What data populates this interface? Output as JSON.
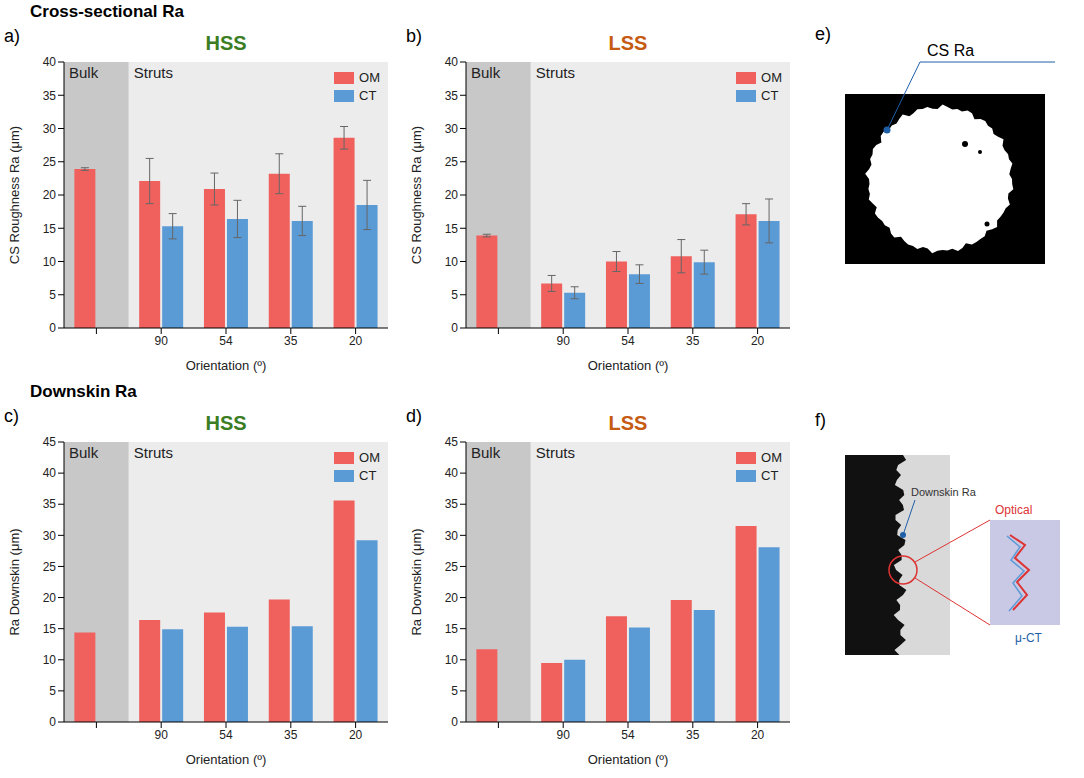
{
  "headings": [
    "Cross-sectional Ra",
    "Downskin Ra"
  ],
  "chart_data": [
    {
      "panel": "a)",
      "type": "bar",
      "title": "HSS",
      "x_label": "Orientation (º)",
      "y_label": "CS Roughness Ra (μm)",
      "categories": [
        null,
        "90",
        "54",
        "35",
        "20"
      ],
      "regions": [
        {
          "label": "Bulk",
          "categories": [
            null
          ]
        },
        {
          "label": "Struts",
          "categories": [
            "90",
            "54",
            "35",
            "20"
          ]
        }
      ],
      "ylim": [
        0,
        40
      ],
      "yticks": [
        0,
        5,
        10,
        15,
        20,
        25,
        30,
        35,
        40
      ],
      "grid": false,
      "legend": "upper right",
      "series": [
        {
          "name": "OM",
          "color": "#f0605d",
          "values": [
            23.9,
            22.1,
            20.9,
            23.2,
            28.6
          ],
          "errors": [
            0.2,
            3.4,
            2.4,
            3.0,
            1.7
          ]
        },
        {
          "name": "CT",
          "color": "#5b9bd5",
          "values": [
            null,
            15.3,
            16.4,
            16.1,
            18.5
          ],
          "errors": [
            null,
            1.9,
            2.8,
            2.2,
            3.7
          ]
        }
      ]
    },
    {
      "panel": "b)",
      "type": "bar",
      "title": "LSS",
      "x_label": "Orientation (º)",
      "y_label": "CS Roughness Ra (μm)",
      "categories": [
        null,
        "90",
        "54",
        "35",
        "20"
      ],
      "regions": [
        {
          "label": "Bulk",
          "categories": [
            null
          ]
        },
        {
          "label": "Struts",
          "categories": [
            "90",
            "54",
            "35",
            "20"
          ]
        }
      ],
      "ylim": [
        0,
        40
      ],
      "yticks": [
        0,
        5,
        10,
        15,
        20,
        25,
        30,
        35,
        40
      ],
      "grid": false,
      "legend": "upper right",
      "series": [
        {
          "name": "OM",
          "color": "#f0605d",
          "values": [
            13.9,
            6.7,
            10.0,
            10.8,
            17.1
          ],
          "errors": [
            0.2,
            1.2,
            1.5,
            2.5,
            1.6
          ]
        },
        {
          "name": "CT",
          "color": "#5b9bd5",
          "values": [
            null,
            5.3,
            8.1,
            9.9,
            16.1
          ],
          "errors": [
            null,
            0.9,
            1.4,
            1.8,
            3.3
          ]
        }
      ]
    },
    {
      "panel": "c)",
      "type": "bar",
      "title": "HSS",
      "x_label": "Orientation (º)",
      "y_label": "Ra Downskin (μm)",
      "categories": [
        null,
        "90",
        "54",
        "35",
        "20"
      ],
      "regions": [
        {
          "label": "Bulk",
          "categories": [
            null
          ]
        },
        {
          "label": "Struts",
          "categories": [
            "90",
            "54",
            "35",
            "20"
          ]
        }
      ],
      "ylim": [
        0,
        45
      ],
      "yticks": [
        0,
        5,
        10,
        15,
        20,
        25,
        30,
        35,
        40,
        45
      ],
      "grid": false,
      "legend": "upper right",
      "series": [
        {
          "name": "OM",
          "color": "#f0605d",
          "values": [
            14.4,
            16.4,
            17.6,
            19.7,
            35.6
          ]
        },
        {
          "name": "CT",
          "color": "#5b9bd5",
          "values": [
            null,
            14.9,
            15.3,
            15.4,
            29.2
          ]
        }
      ]
    },
    {
      "panel": "d)",
      "type": "bar",
      "title": "LSS",
      "x_label": "Orientation (º)",
      "y_label": "Ra Downskin (μm)",
      "categories": [
        null,
        "90",
        "54",
        "35",
        "20"
      ],
      "regions": [
        {
          "label": "Bulk",
          "categories": [
            null
          ]
        },
        {
          "label": "Struts",
          "categories": [
            "90",
            "54",
            "35",
            "20"
          ]
        }
      ],
      "ylim": [
        0,
        45
      ],
      "yticks": [
        0,
        5,
        10,
        15,
        20,
        25,
        30,
        35,
        40,
        45
      ],
      "grid": false,
      "legend": "upper right",
      "series": [
        {
          "name": "OM",
          "color": "#f0605d",
          "values": [
            11.7,
            9.5,
            17.0,
            19.6,
            31.5
          ]
        },
        {
          "name": "CT",
          "color": "#5b9bd5",
          "values": [
            null,
            10.0,
            15.2,
            18.0,
            28.1
          ]
        }
      ]
    }
  ],
  "images": [
    {
      "panel": "e)",
      "labels": [
        "CS Ra"
      ]
    },
    {
      "panel": "f)",
      "labels": [
        "Downskin Ra",
        "Optical",
        "μ-CT"
      ]
    }
  ]
}
